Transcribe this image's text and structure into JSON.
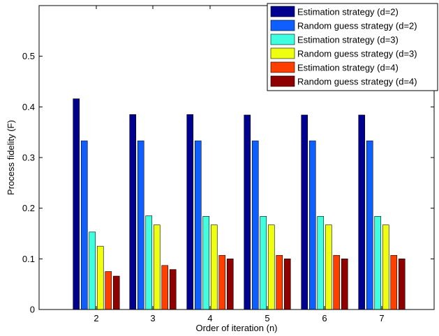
{
  "chart_data": {
    "type": "bar",
    "xlabel": "Order of iteration (n)",
    "ylabel": "Process fidelity (F)",
    "categories": [
      "2",
      "3",
      "4",
      "5",
      "6",
      "7"
    ],
    "ylim": [
      0,
      0.6
    ],
    "yticks": [
      0,
      0.1,
      0.2,
      0.3,
      0.4,
      0.5
    ],
    "ytick_labels": [
      "0",
      "0.1",
      "0.2",
      "0.3",
      "0.4",
      "0.5"
    ],
    "grid": false,
    "legend_position": "top-right",
    "series": [
      {
        "name": "Estimation strategy (d=2)",
        "color": "#00008f",
        "values": [
          0.416,
          0.385,
          0.385,
          0.384,
          0.384,
          0.384
        ]
      },
      {
        "name": "Random guess strategy (d=2)",
        "color": "#0f5fff",
        "values": [
          0.333,
          0.333,
          0.333,
          0.333,
          0.333,
          0.333
        ]
      },
      {
        "name": "Estimation strategy (d=3)",
        "color": "#40ffdf",
        "values": [
          0.153,
          0.185,
          0.184,
          0.184,
          0.184,
          0.184
        ]
      },
      {
        "name": "Random guess strategy (d=3)",
        "color": "#efff10",
        "values": [
          0.125,
          0.167,
          0.167,
          0.167,
          0.167,
          0.167
        ]
      },
      {
        "name": "Estimation strategy (d=4)",
        "color": "#ff3f00",
        "values": [
          0.075,
          0.087,
          0.107,
          0.107,
          0.107,
          0.107
        ]
      },
      {
        "name": "Random guess strategy (d=4)",
        "color": "#8f0000",
        "values": [
          0.066,
          0.079,
          0.1,
          0.1,
          0.1,
          0.1
        ]
      }
    ]
  }
}
